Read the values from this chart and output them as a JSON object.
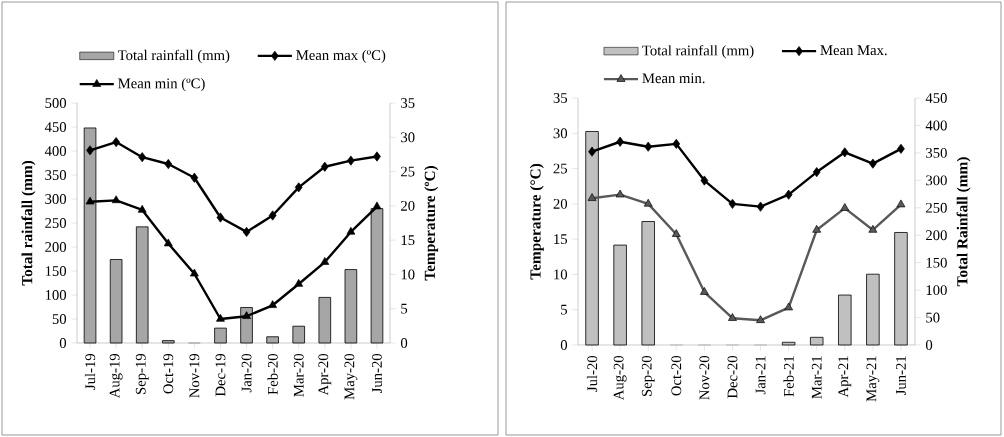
{
  "chart_data": [
    {
      "type": "bar",
      "categories": [
        "Jul-19",
        "Aug-19",
        "Sep-19",
        "Oct-19",
        "Nov-19",
        "Dec-19",
        "Jan-20",
        "Feb-20",
        "Mar-20",
        "Apr-20",
        "May-20",
        "Jun-20"
      ],
      "ylabel": "Total rainfall (mm)",
      "y2label": "Temperature (ºC)",
      "ylim": [
        0,
        500
      ],
      "yticks": [
        0,
        50,
        100,
        150,
        200,
        250,
        300,
        350,
        400,
        450,
        500
      ],
      "y2lim": [
        0,
        35
      ],
      "y2ticks": [
        0,
        5,
        10,
        15,
        20,
        25,
        30,
        35
      ],
      "legend": "top",
      "series": [
        {
          "name": "Total rainfall (mm)",
          "color": "#a6a6a6",
          "values": [
            448,
            174,
            242,
            5,
            0,
            31,
            74,
            13,
            35,
            95,
            153,
            280
          ]
        },
        {
          "name": "Mean max (ºC)",
          "type": "line",
          "axis": "y2",
          "marker": "diamond",
          "color": "#000000",
          "values": [
            28.1,
            29.3,
            27.1,
            26.1,
            24.1,
            18.3,
            16.2,
            18.6,
            22.7,
            25.7,
            26.6,
            27.2
          ]
        },
        {
          "name": "Mean min (ºC)",
          "type": "line",
          "axis": "y2",
          "marker": "triangle",
          "color": "#000000",
          "values": [
            20.6,
            20.8,
            19.4,
            14.5,
            10.1,
            3.5,
            3.9,
            5.5,
            8.6,
            11.8,
            16.2,
            19.9
          ]
        }
      ]
    },
    {
      "type": "bar",
      "categories": [
        "Jul-20",
        "Aug-20",
        "Sep-20",
        "Oct-20",
        "Nov-20",
        "Dec-20",
        "Jan-21",
        "Feb-21",
        "Mar-21",
        "Apr-21",
        "May-21",
        "Jun-21"
      ],
      "ylabel": "Temperature (°C)",
      "y2label": "Total Rainfall (mm)",
      "ylim": [
        0,
        35
      ],
      "yticks": [
        0,
        5,
        10,
        15,
        20,
        25,
        30,
        35
      ],
      "y2lim": [
        0,
        450
      ],
      "y2ticks": [
        0,
        50,
        100,
        150,
        200,
        250,
        300,
        350,
        400,
        450
      ],
      "legend": "top",
      "series": [
        {
          "name": "Total rainfall (mm)",
          "axis": "y2",
          "color": "#c0c0c0",
          "values": [
            389,
            182,
            225,
            0,
            0,
            0,
            0,
            5,
            14,
            91,
            129,
            205
          ]
        },
        {
          "name": "Mean Max.",
          "type": "line",
          "marker": "diamond",
          "color": "#000000",
          "values": [
            27.4,
            28.8,
            28.1,
            28.5,
            23.3,
            20.0,
            19.6,
            21.3,
            24.5,
            27.3,
            25.7,
            27.8
          ]
        },
        {
          "name": "Mean min.",
          "type": "line",
          "marker": "triangle",
          "color": "#595959",
          "values": [
            20.8,
            21.3,
            20.0,
            15.7,
            7.5,
            3.8,
            3.5,
            5.3,
            16.3,
            19.4,
            16.3,
            19.9
          ]
        }
      ]
    }
  ]
}
